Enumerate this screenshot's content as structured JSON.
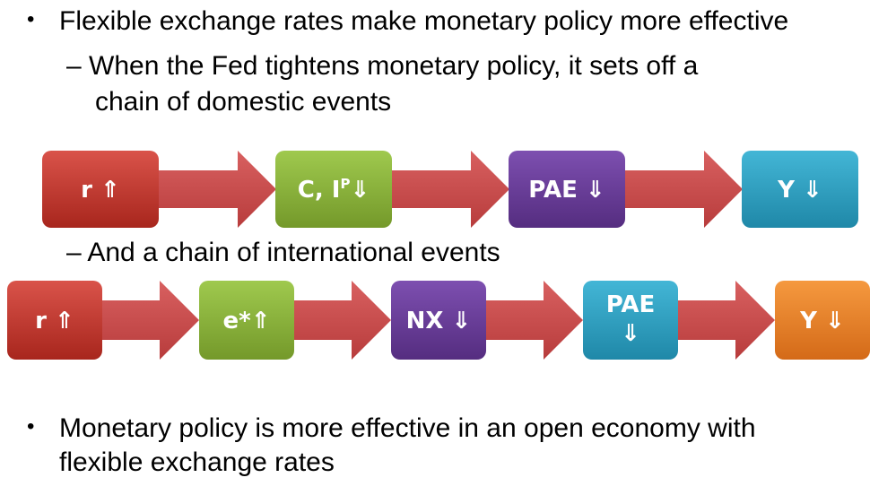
{
  "bullets": {
    "first": "Flexible exchange rates make monetary policy more effective",
    "sub1_line1": "– When the Fed tightens monetary policy, it sets off a",
    "sub1_line2": "chain of domestic events",
    "sub2": "– And a chain of international events",
    "last_line1": "Monetary policy is more effective in an open economy with",
    "last_line2": "flexible exchange rates"
  },
  "domestic_chain": {
    "box1": "r ⇑",
    "box2_main": "C, I",
    "box2_sup": "P",
    "box2_arrow": "⇓",
    "box3": "PAE ⇓",
    "box4": "Y ⇓"
  },
  "international_chain": {
    "box1": "r ⇑",
    "box2": "e*⇑",
    "box3": "NX ⇓",
    "box4_line1": "PAE",
    "box4_line2": "⇓",
    "box5": "Y ⇓"
  },
  "colors": {
    "red": "#c0392b",
    "green": "#8cb33c",
    "purple": "#6a3d99",
    "teal": "#2ea3c4",
    "orange": "#e8822c",
    "arrow": "#c84a4a"
  }
}
